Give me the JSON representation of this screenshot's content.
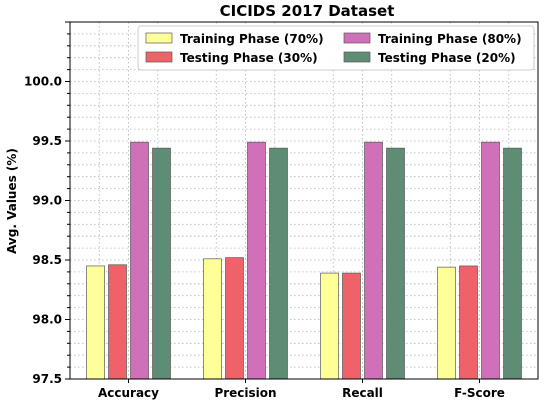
{
  "chart_data": {
    "type": "bar",
    "title": "CICIDS 2017 Dataset",
    "xlabel": "",
    "ylabel": "Avg. Values (%)",
    "ylim": [
      97.5,
      100.5
    ],
    "yticks": [
      "97.5",
      "98.0",
      "98.5",
      "99.0",
      "99.5",
      "100.0"
    ],
    "grid": true,
    "legend_position": "top-right",
    "categories": [
      "Accuracy",
      "Precision",
      "Recall",
      "F-Score"
    ],
    "series": [
      {
        "name": "Training Phase (70%)",
        "color": "#ffff99",
        "values": [
          98.45,
          98.51,
          98.39,
          98.44
        ]
      },
      {
        "name": "Testing Phase (30%)",
        "color": "#f0626a",
        "values": [
          98.46,
          98.52,
          98.39,
          98.45
        ]
      },
      {
        "name": "Training Phase (80%)",
        "color": "#d070b8",
        "values": [
          99.49,
          99.49,
          99.49,
          99.49
        ]
      },
      {
        "name": "Testing Phase (20%)",
        "color": "#5f8c75",
        "values": [
          99.44,
          99.44,
          99.44,
          99.44
        ]
      }
    ]
  }
}
